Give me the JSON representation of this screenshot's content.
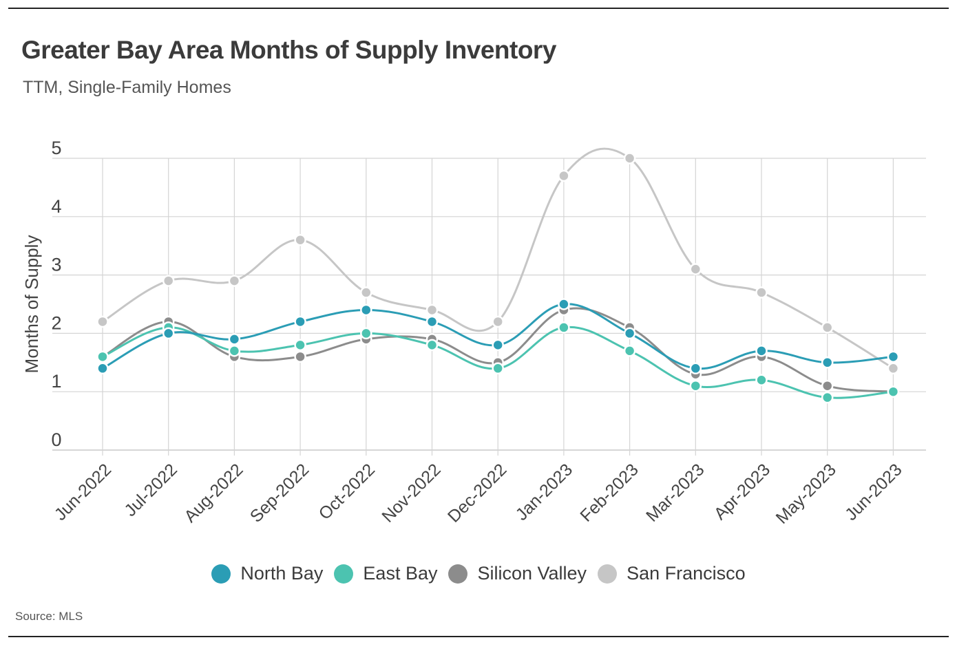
{
  "chart_data": {
    "type": "line",
    "title": "Greater Bay Area Months of Supply Inventory",
    "subtitle": "TTM, Single-Family Homes",
    "ylabel": "Months of Supply",
    "xlabel": "",
    "ylim": [
      0,
      5
    ],
    "yticks": [
      "0",
      "1",
      "2",
      "3",
      "4",
      "5"
    ],
    "grid": true,
    "legend_position": "bottom",
    "categories": [
      "Jun-2022",
      "Jul-2022",
      "Aug-2022",
      "Sep-2022",
      "Oct-2022",
      "Nov-2022",
      "Dec-2022",
      "Jan-2023",
      "Feb-2023",
      "Mar-2023",
      "Apr-2023",
      "May-2023",
      "Jun-2023"
    ],
    "series": [
      {
        "name": "North Bay",
        "color": "#2b9db5",
        "values": [
          1.4,
          2.0,
          1.9,
          2.2,
          2.4,
          2.2,
          1.8,
          2.5,
          2.0,
          1.4,
          1.7,
          1.5,
          1.6
        ]
      },
      {
        "name": "East Bay",
        "color": "#4cc3b0",
        "values": [
          1.6,
          2.1,
          1.7,
          1.8,
          2.0,
          1.8,
          1.4,
          2.1,
          1.7,
          1.1,
          1.2,
          0.9,
          1.0
        ]
      },
      {
        "name": "Silicon Valley",
        "color": "#8c8c8c",
        "values": [
          1.6,
          2.2,
          1.6,
          1.6,
          1.9,
          1.9,
          1.5,
          2.4,
          2.1,
          1.3,
          1.6,
          1.1,
          1.0
        ]
      },
      {
        "name": "San Francisco",
        "color": "#c6c6c6",
        "values": [
          2.2,
          2.9,
          2.9,
          3.6,
          2.7,
          2.4,
          2.2,
          4.7,
          5.0,
          3.1,
          2.7,
          2.1,
          1.4
        ]
      }
    ]
  },
  "source": "Source:  MLS"
}
